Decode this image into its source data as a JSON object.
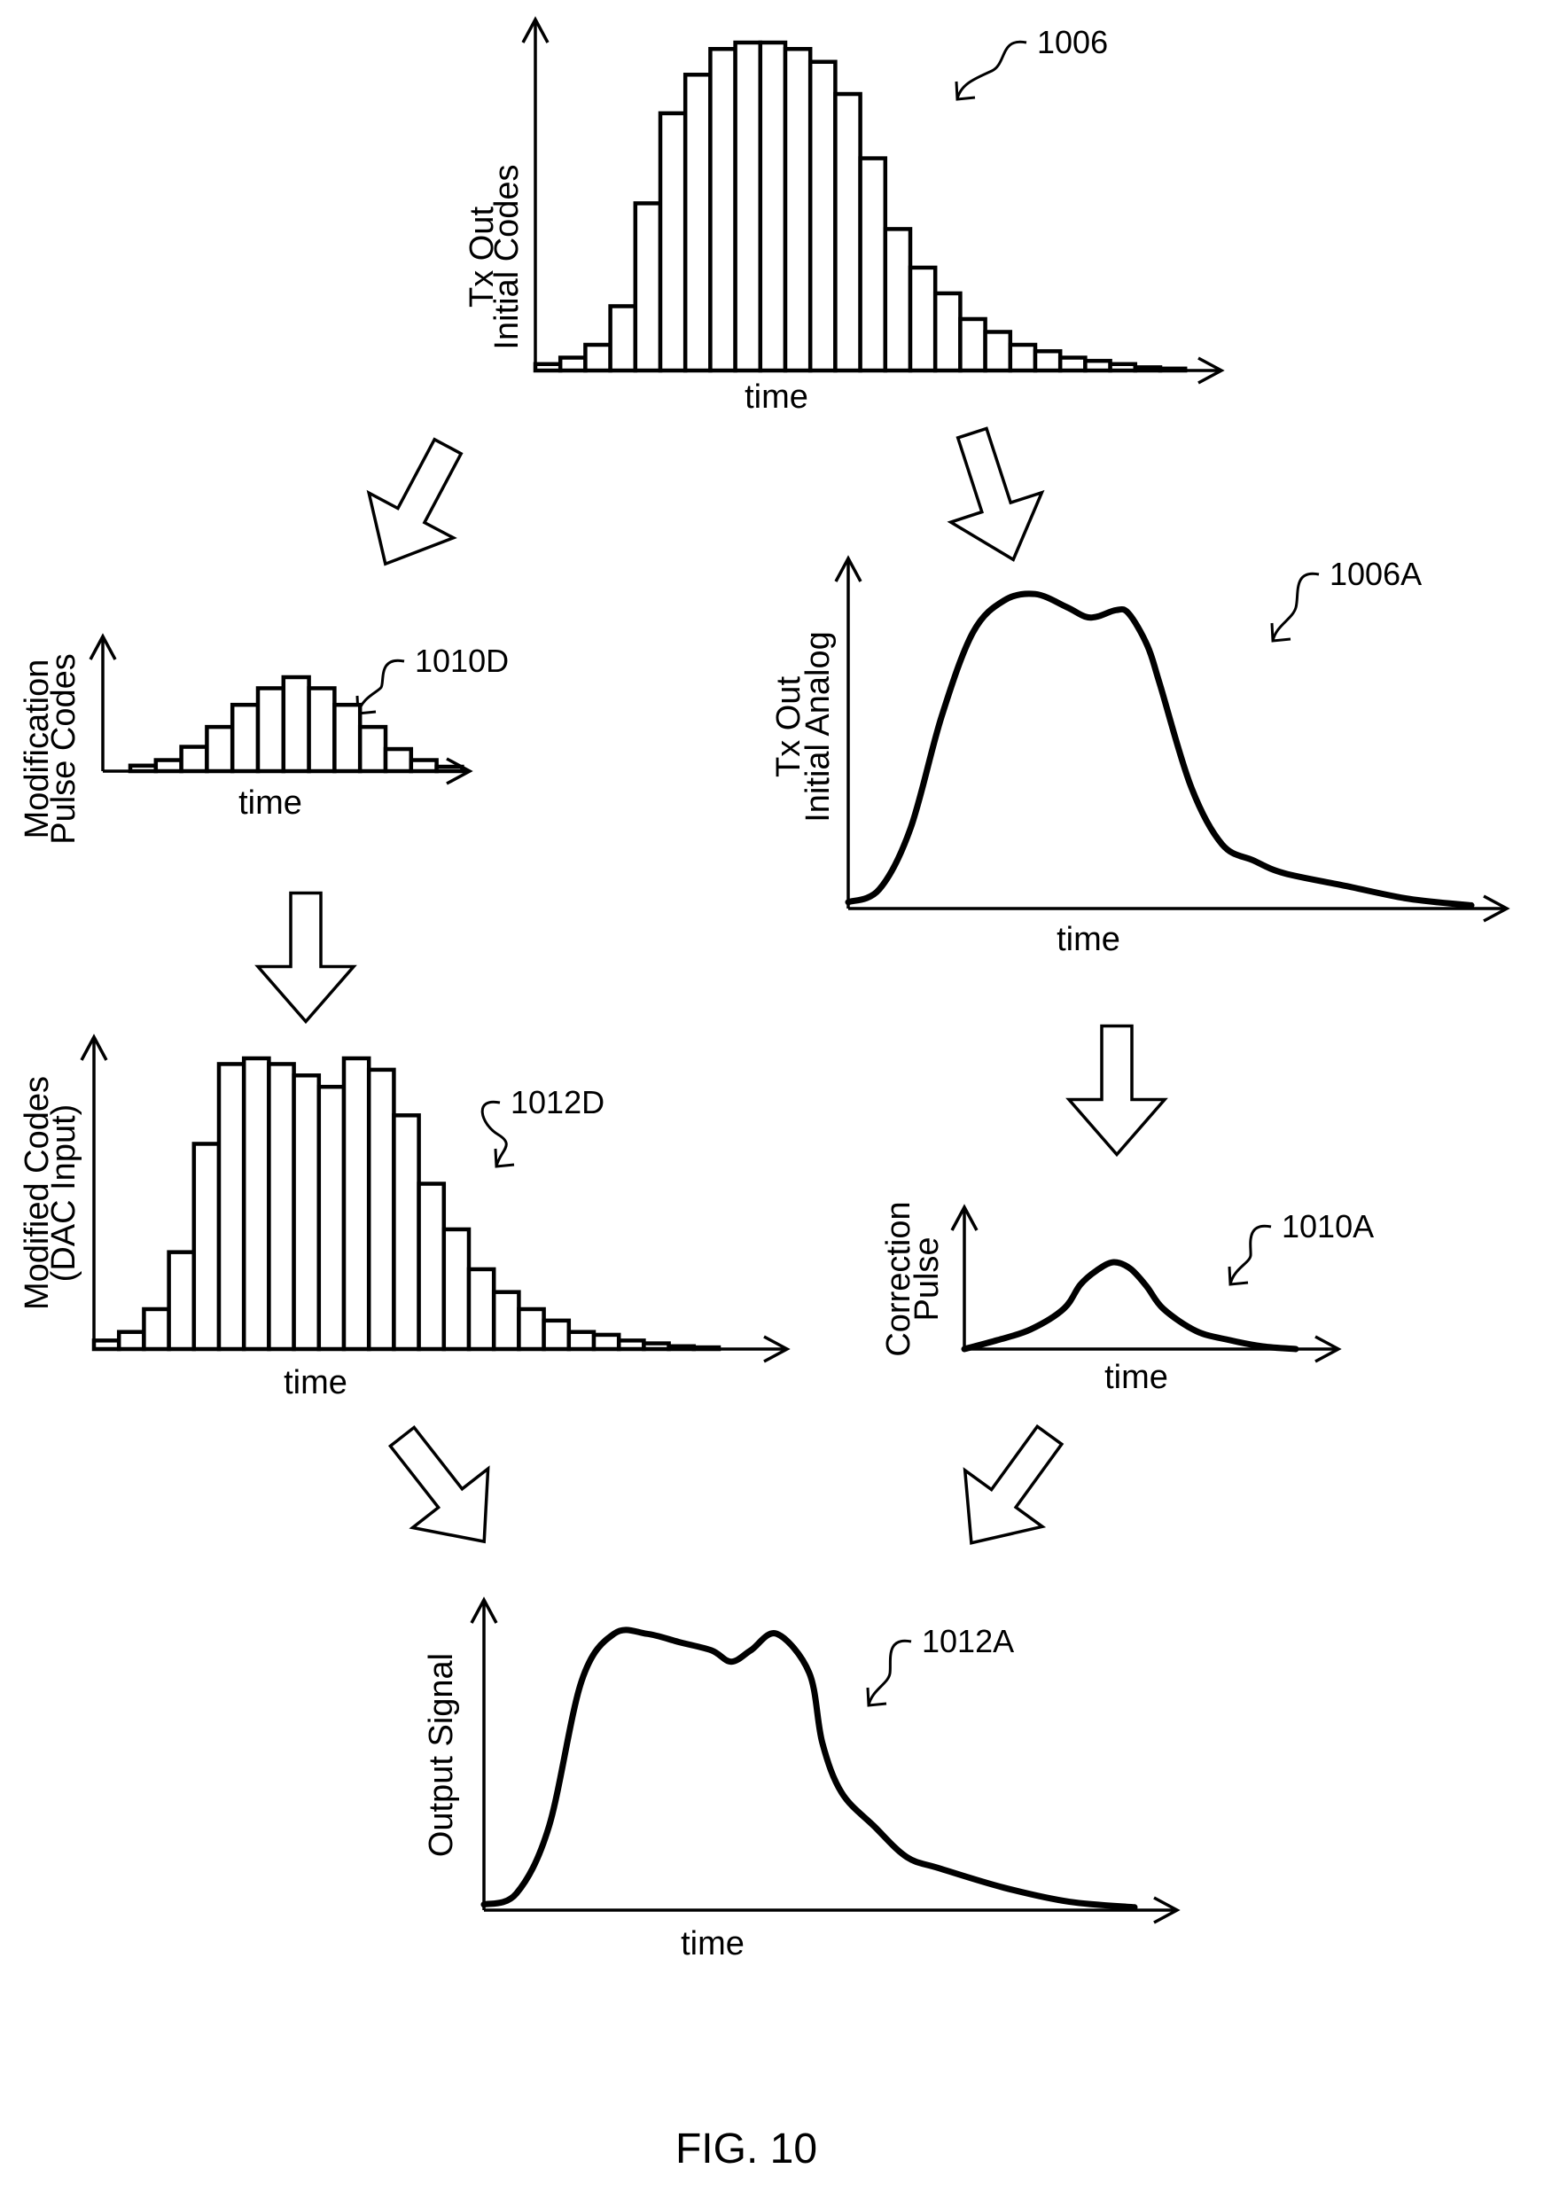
{
  "figure_caption": "FIG. 10",
  "chart_data": [
    {
      "id": "1006",
      "type": "bar",
      "reference": "1006",
      "xlabel": "time",
      "ylabel": [
        "Tx Out",
        "Initial Codes"
      ],
      "values": [
        1,
        2,
        4,
        10,
        26,
        40,
        46,
        50,
        51,
        51,
        50,
        48,
        43,
        33,
        22,
        16,
        12,
        8,
        6,
        4,
        3,
        2,
        1.5,
        1,
        0.5,
        0.3
      ]
    },
    {
      "id": "1010D",
      "type": "bar",
      "reference": "1010D",
      "xlabel": "time",
      "ylabel": [
        "Modification",
        "Pulse Codes"
      ],
      "values": [
        0.5,
        1,
        2.2,
        4,
        6,
        7.5,
        8.5,
        7.5,
        6,
        4,
        2,
        1,
        0.4
      ]
    },
    {
      "id": "1012D",
      "type": "bar",
      "reference": "1012D",
      "xlabel": "time",
      "ylabel": [
        "Modified Codes",
        "(DAC Input)"
      ],
      "values": [
        1.5,
        3,
        7,
        17,
        36,
        50,
        51,
        50,
        48,
        46,
        51,
        49,
        41,
        29,
        21,
        14,
        10,
        7,
        5,
        3,
        2.5,
        1.5,
        1,
        0.5,
        0.3
      ]
    },
    {
      "id": "1006A",
      "type": "line",
      "reference": "1006A",
      "xlabel": "time",
      "ylabel": [
        "Tx Out",
        "Initial Analog"
      ],
      "x": [
        0,
        0.05,
        0.1,
        0.15,
        0.2,
        0.25,
        0.3,
        0.35,
        0.38,
        0.4,
        0.43,
        0.45,
        0.48,
        0.5,
        0.55,
        0.6,
        0.65,
        0.7,
        0.8,
        0.9,
        1.0
      ],
      "y": [
        0.02,
        0.06,
        0.25,
        0.6,
        0.86,
        0.96,
        0.98,
        0.94,
        0.91,
        0.91,
        0.93,
        0.92,
        0.82,
        0.7,
        0.38,
        0.2,
        0.15,
        0.11,
        0.07,
        0.03,
        0.01
      ]
    },
    {
      "id": "1010A",
      "type": "line",
      "reference": "1010A",
      "xlabel": "time",
      "ylabel": [
        "Correction",
        "Pulse"
      ],
      "x": [
        0,
        0.1,
        0.2,
        0.3,
        0.35,
        0.4,
        0.45,
        0.5,
        0.55,
        0.6,
        0.7,
        0.8,
        0.9,
        1.0
      ],
      "y": [
        0.0,
        0.1,
        0.22,
        0.45,
        0.72,
        0.88,
        0.97,
        0.9,
        0.7,
        0.45,
        0.2,
        0.1,
        0.03,
        0.0
      ]
    },
    {
      "id": "1012A",
      "type": "line",
      "reference": "1012A",
      "xlabel": "time",
      "ylabel": [
        "Output Signal"
      ],
      "x": [
        0,
        0.05,
        0.1,
        0.15,
        0.2,
        0.25,
        0.3,
        0.35,
        0.38,
        0.41,
        0.45,
        0.5,
        0.52,
        0.55,
        0.6,
        0.65,
        0.7,
        0.8,
        0.9,
        1.0
      ],
      "y": [
        0.02,
        0.06,
        0.3,
        0.82,
        0.99,
        0.99,
        0.96,
        0.93,
        0.89,
        0.93,
        0.99,
        0.85,
        0.6,
        0.42,
        0.3,
        0.19,
        0.15,
        0.08,
        0.03,
        0.01
      ]
    }
  ]
}
